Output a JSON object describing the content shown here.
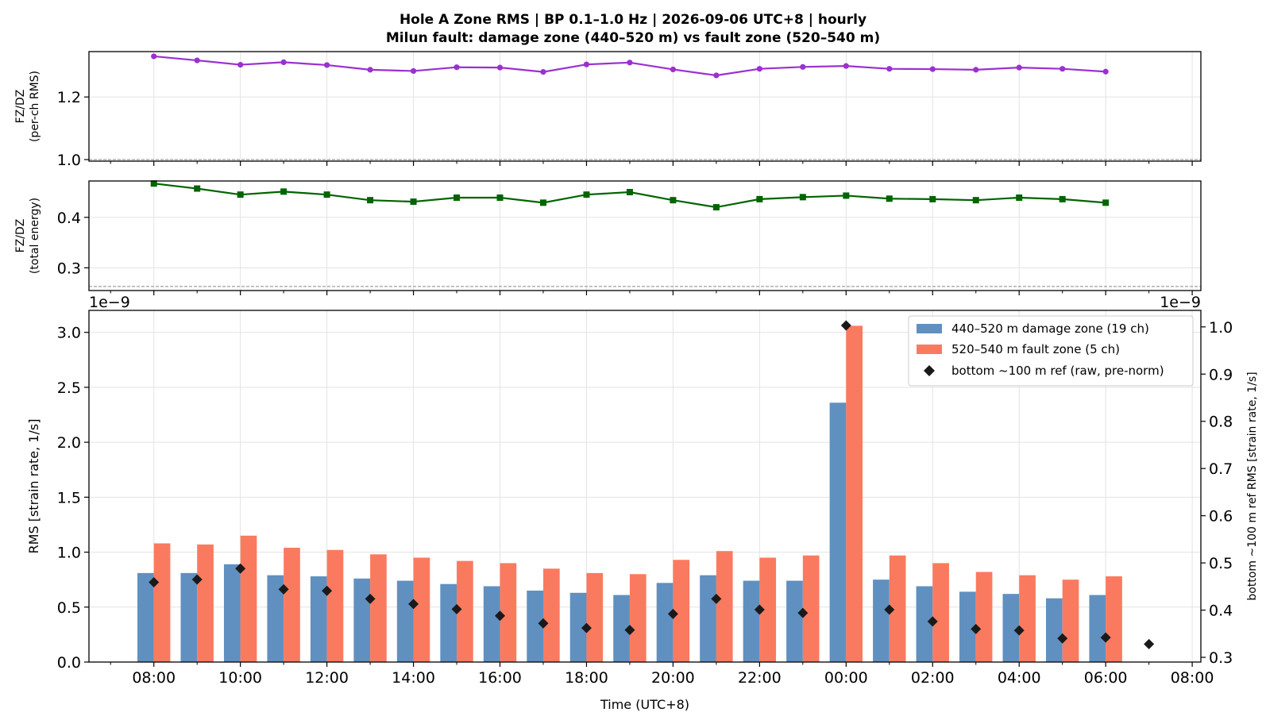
{
  "figure": {
    "title_line1": "Hole A Zone RMS  |  BP 0.1–1.0 Hz  |  2026-09-06 UTC+8  |  hourly",
    "title_line2": "Milun fault: damage zone (440–520 m) vs fault zone (520–540 m)"
  },
  "chart_data": [
    {
      "id": "ratio_rms",
      "type": "line",
      "ylabel_line1": "FZ/DZ",
      "ylabel_line2": "(per-ch RMS)",
      "ylim": [
        0.995,
        1.345
      ],
      "yticks": [
        1.0,
        1.2
      ],
      "ytick_labels": [
        "1.0",
        "1.2"
      ],
      "reference_line": 1.0,
      "color": "#9b30d0",
      "marker": "circle",
      "grid": true,
      "values": [
        1.33,
        1.317,
        1.303,
        1.311,
        1.302,
        1.287,
        1.283,
        1.295,
        1.294,
        1.28,
        1.304,
        1.31,
        1.288,
        1.269,
        1.29,
        1.296,
        1.299,
        1.29,
        1.289,
        1.287,
        1.294,
        1.29,
        1.281
      ]
    },
    {
      "id": "ratio_energy",
      "type": "line",
      "ylabel_line1": "FZ/DZ",
      "ylabel_line2": "(total energy)",
      "ylim": [
        0.255,
        0.472
      ],
      "yticks": [
        0.3,
        0.4
      ],
      "ytick_labels": [
        "0.3",
        "0.4"
      ],
      "reference_line": 0.263,
      "color": "#006400",
      "marker": "square",
      "grid": true,
      "values": [
        0.467,
        0.457,
        0.445,
        0.451,
        0.445,
        0.434,
        0.431,
        0.439,
        0.439,
        0.429,
        0.445,
        0.45,
        0.434,
        0.42,
        0.436,
        0.44,
        0.443,
        0.437,
        0.436,
        0.434,
        0.439,
        0.436,
        0.429
      ]
    },
    {
      "id": "zone_rms",
      "type": "bar",
      "xlabel": "Time (UTC+8)",
      "ylabel": "RMS  [strain rate, 1/s]",
      "y2label": "bottom ~100 m ref RMS  [strain rate, 1/s]",
      "scale_note_left": "1e−9",
      "scale_note_right": "1e−9",
      "ylim": [
        0,
        3.2
      ],
      "yticks": [
        0.0,
        0.5,
        1.0,
        1.5,
        2.0,
        2.5,
        3.0
      ],
      "ytick_labels": [
        "0.0",
        "0.5",
        "1.0",
        "1.5",
        "2.0",
        "2.5",
        "3.0"
      ],
      "y2lim": [
        0.29,
        1.035
      ],
      "y2ticks": [
        0.3,
        0.4,
        0.5,
        0.6,
        0.7,
        0.8,
        0.9,
        1.0
      ],
      "y2tick_labels": [
        "0.3",
        "0.4",
        "0.5",
        "0.6",
        "0.7",
        "0.8",
        "0.9",
        "1.0"
      ],
      "xlim_hours": [
        6.5,
        32.2
      ],
      "xticks_hours": [
        8,
        10,
        12,
        14,
        16,
        18,
        20,
        22,
        24,
        26,
        28,
        30,
        32
      ],
      "xtick_labels": [
        "08:00",
        "10:00",
        "12:00",
        "14:00",
        "16:00",
        "18:00",
        "20:00",
        "22:00",
        "00:00",
        "02:00",
        "04:00",
        "06:00",
        "08:00"
      ],
      "legend_position": "top-right",
      "grid": true,
      "series": [
        {
          "name": "440–520 m  damage zone (19 ch)",
          "color": "#6090c0",
          "hours": [
            8,
            9,
            10,
            11,
            12,
            13,
            14,
            15,
            16,
            17,
            18,
            19,
            20,
            21,
            22,
            23,
            24,
            25,
            26,
            27,
            28,
            29,
            30
          ],
          "values": [
            0.81,
            0.81,
            0.89,
            0.79,
            0.78,
            0.76,
            0.74,
            0.71,
            0.69,
            0.65,
            0.63,
            0.61,
            0.72,
            0.79,
            0.74,
            0.74,
            2.36,
            0.75,
            0.69,
            0.64,
            0.62,
            0.58,
            0.61
          ]
        },
        {
          "name": "520–540 m  fault zone (5 ch)",
          "color": "#fa7a60",
          "hours": [
            8,
            9,
            10,
            11,
            12,
            13,
            14,
            15,
            16,
            17,
            18,
            19,
            20,
            21,
            22,
            23,
            24,
            25,
            26,
            27,
            28,
            29,
            30
          ],
          "values": [
            1.08,
            1.07,
            1.15,
            1.04,
            1.02,
            0.98,
            0.95,
            0.92,
            0.9,
            0.85,
            0.81,
            0.8,
            0.93,
            1.01,
            0.95,
            0.97,
            3.06,
            0.97,
            0.9,
            0.82,
            0.79,
            0.75,
            0.78
          ]
        },
        {
          "name": "bottom ~100 m ref (raw, pre-norm)",
          "color": "#1a1a1a",
          "axis": "right",
          "marker": "diamond",
          "hours": [
            8,
            9,
            10,
            11,
            12,
            13,
            14,
            15,
            16,
            17,
            18,
            19,
            20,
            21,
            22,
            23,
            24,
            25,
            26,
            27,
            28,
            29,
            30,
            31
          ],
          "values": [
            0.459,
            0.465,
            0.488,
            0.444,
            0.441,
            0.424,
            0.413,
            0.402,
            0.388,
            0.372,
            0.362,
            0.358,
            0.392,
            0.424,
            0.401,
            0.394,
            1.003,
            0.401,
            0.376,
            0.36,
            0.357,
            0.34,
            0.342,
            0.328
          ]
        }
      ]
    }
  ]
}
